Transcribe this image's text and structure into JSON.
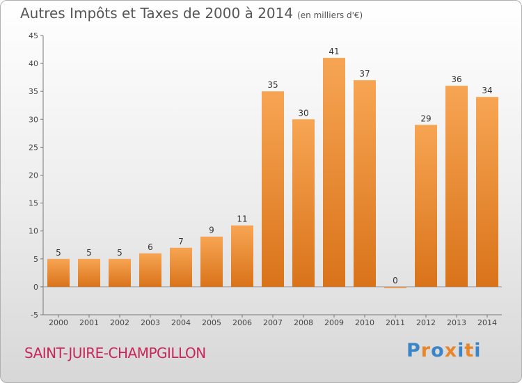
{
  "header": {
    "title": "Autres Impôts et Taxes de 2000 à 2014",
    "subtitle": "(en milliers d'€)"
  },
  "footer": {
    "location": "SAINT-JUIRE-CHAMPGILLON",
    "brand": "Proxiti"
  },
  "colors": {
    "bar_top": "#f7a553",
    "bar_bottom": "#d9731a",
    "location": "#c8265a",
    "brand_letters": [
      "#3a84c8",
      "#e8872a",
      "#3a84c8",
      "#e8872a",
      "#3a84c8",
      "#e8872a",
      "#3a84c8"
    ]
  },
  "chart_data": {
    "type": "bar",
    "categories": [
      "2000",
      "2001",
      "2002",
      "2003",
      "2004",
      "2005",
      "2006",
      "2007",
      "2008",
      "2009",
      "2010",
      "2011",
      "2012",
      "2013",
      "2014"
    ],
    "values": [
      5,
      5,
      5,
      6,
      7,
      9,
      11,
      35,
      30,
      41,
      37,
      0,
      29,
      36,
      34
    ],
    "ylim": [
      -5,
      45
    ],
    "yticks": [
      -5,
      0,
      5,
      10,
      15,
      20,
      25,
      30,
      35,
      40,
      45
    ],
    "grid": false,
    "data_labels": true
  }
}
